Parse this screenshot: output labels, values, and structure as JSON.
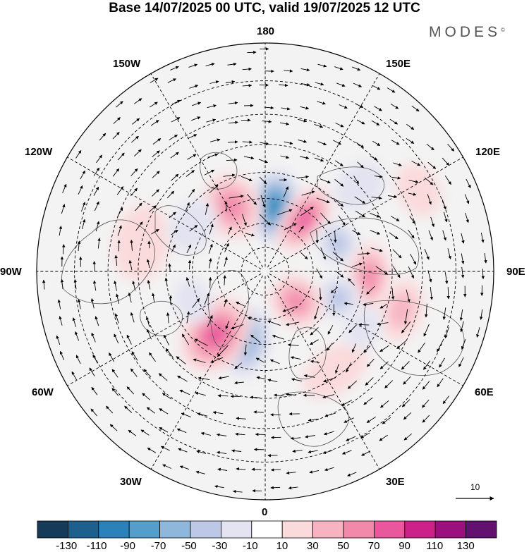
{
  "title": "Base 14/07/2025 00 UTC, valid 19/07/2025 12 UTC",
  "brand": "MODES",
  "brand_mark": "©",
  "longitude_labels": {
    "lon_180": "180",
    "lon_150w": "150W",
    "lon_150e": "150E",
    "lon_120w": "120W",
    "lon_120e": "120E",
    "lon_90w": "90W",
    "lon_90e": "90E",
    "lon_60w": "60W",
    "lon_60e": "60E",
    "lon_30w": "30W",
    "lon_30e": "30E",
    "lon_0": "0"
  },
  "reference_vector": {
    "label": "10"
  },
  "colorbar": {
    "colors": [
      "#163b58",
      "#1d5f8d",
      "#2b82ba",
      "#539ecb",
      "#8fb7dc",
      "#bcc8e6",
      "#e3e3f1",
      "#ffffff",
      "#fbdadb",
      "#f7b3c1",
      "#f289ab",
      "#e9579d",
      "#cc2189",
      "#9b0f7e",
      "#621170"
    ],
    "tick_labels": [
      "-130",
      "-110",
      "-90",
      "-70",
      "-50",
      "-30",
      "-10",
      "10",
      "30",
      "50",
      "70",
      "90",
      "110",
      "130"
    ]
  },
  "anomaly_centers": [
    {
      "name": "low-near-180",
      "lon": 172,
      "lat": 63,
      "value": -100,
      "rx": 36,
      "ry": 52
    },
    {
      "name": "high-150e",
      "lon": 143,
      "lat": 63,
      "value": 90,
      "rx": 30,
      "ry": 52
    },
    {
      "name": "high-150w",
      "lon": -153,
      "lat": 60,
      "value": 70,
      "rx": 40,
      "ry": 48
    },
    {
      "name": "low-110e",
      "lon": 111,
      "lat": 58,
      "value": -55,
      "rx": 32,
      "ry": 28
    },
    {
      "name": "high-90e",
      "lon": 87,
      "lat": 48,
      "value": 75,
      "rx": 48,
      "ry": 30
    },
    {
      "name": "high-73e",
      "lon": 74,
      "lat": 35,
      "value": 50,
      "rx": 45,
      "ry": 30
    },
    {
      "name": "low-75e",
      "lon": 70,
      "lat": 58,
      "value": -40,
      "rx": 30,
      "ry": 30
    },
    {
      "name": "high-45e",
      "lon": 46,
      "lat": 72,
      "value": 75,
      "rx": 35,
      "ry": 40
    },
    {
      "name": "low-17w",
      "lon": -14,
      "lat": 60,
      "value": -70,
      "rx": 32,
      "ry": 52
    },
    {
      "name": "high-38w",
      "lon": -38,
      "lat": 57,
      "value": 85,
      "rx": 45,
      "ry": 58
    },
    {
      "name": "high-40e",
      "lon": 35,
      "lat": 42,
      "value": 35,
      "rx": 52,
      "ry": 32
    },
    {
      "name": "low-65w",
      "lon": -68,
      "lat": 58,
      "value": -35,
      "rx": 32,
      "ry": 26
    },
    {
      "name": "high-100w",
      "lon": -103,
      "lat": 40,
      "value": 25,
      "rx": 55,
      "ry": 40
    },
    {
      "name": "low-120w",
      "lon": -122,
      "lat": 55,
      "value": -25,
      "rx": 40,
      "ry": 30
    },
    {
      "name": "low-60e-mid",
      "lon": 60,
      "lat": 45,
      "value": -25,
      "rx": 30,
      "ry": 25
    },
    {
      "name": "high-120e-edge",
      "lon": 118,
      "lat": 25,
      "value": 25,
      "rx": 40,
      "ry": 30
    },
    {
      "name": "low-130e-edge",
      "lon": 132,
      "lat": 40,
      "value": -30,
      "rx": 30,
      "ry": 40
    }
  ]
}
